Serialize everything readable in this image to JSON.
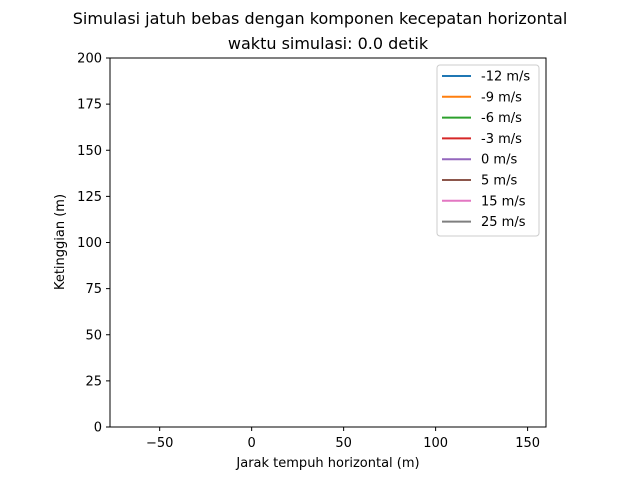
{
  "chart_data": {
    "type": "line",
    "title": "Simulasi jatuh bebas dengan komponen kecepatan horizontal",
    "subtitle": "waktu simulasi: 0.0 detik",
    "xlabel": "Jarak tempuh horizontal (m)",
    "ylabel": "Ketinggian (m)",
    "xlim": [
      -77,
      160
    ],
    "ylim": [
      0,
      200
    ],
    "xticks": [
      -50,
      0,
      50,
      100,
      150
    ],
    "xtick_labels": [
      "−50",
      "0",
      "50",
      "100",
      "150"
    ],
    "yticks": [
      0,
      25,
      50,
      75,
      100,
      125,
      150,
      175,
      200
    ],
    "ytick_labels": [
      "0",
      "25",
      "50",
      "75",
      "100",
      "125",
      "150",
      "175",
      "200"
    ],
    "grid": false,
    "legend_position": "top-right",
    "series": [
      {
        "name": "-12 m/s",
        "color": "#1f77b4",
        "x": [],
        "y": []
      },
      {
        "name": "-9 m/s",
        "color": "#ff7f0e",
        "x": [],
        "y": []
      },
      {
        "name": "-6 m/s",
        "color": "#2ca02c",
        "x": [],
        "y": []
      },
      {
        "name": "-3 m/s",
        "color": "#d62728",
        "x": [],
        "y": []
      },
      {
        "name": "0 m/s",
        "color": "#9467bd",
        "x": [],
        "y": []
      },
      {
        "name": "5 m/s",
        "color": "#8c564b",
        "x": [],
        "y": []
      },
      {
        "name": "15 m/s",
        "color": "#e377c2",
        "x": [],
        "y": []
      },
      {
        "name": "25 m/s",
        "color": "#7f7f7f",
        "x": [],
        "y": []
      }
    ]
  }
}
